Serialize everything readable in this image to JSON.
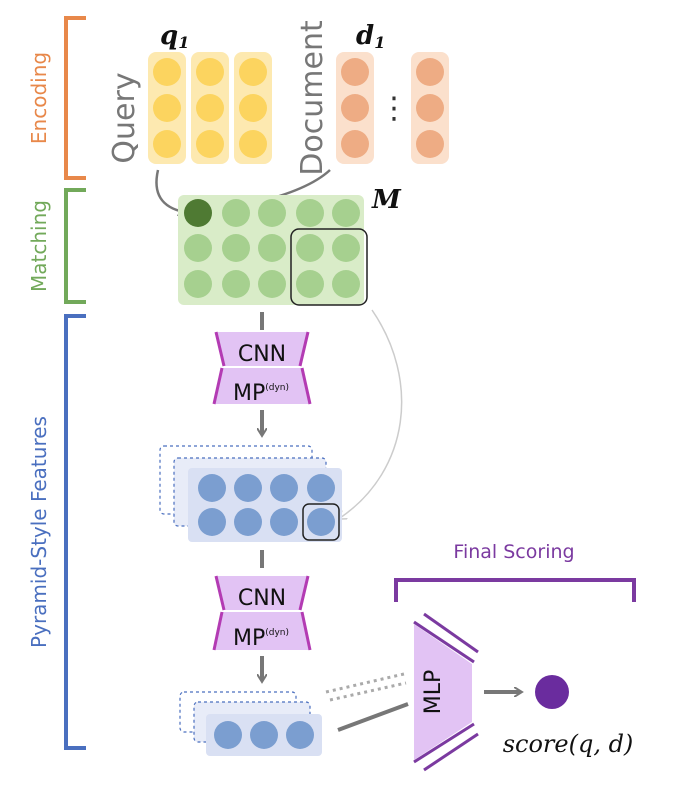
{
  "colors": {
    "encoding": "#e8884a",
    "matching": "#72a95a",
    "pyramid": "#4a6fbf",
    "scoring": "#7b3aa0",
    "query_fill": "#fde9b0",
    "query_dot": "#fcd45f",
    "doc_fill": "#fbe0cc",
    "doc_dot": "#eeac84",
    "match_bg": "#d9ecc8",
    "match_dot": "#a6d08f",
    "match_highlight": "#4f7a33",
    "feature_bg": "#d9e0f3",
    "feature_dot": "#7b9ed0",
    "cnn_fill": "#e2c3f4",
    "cnn_stroke": "#b33bb3",
    "score_dot": "#6a2c9e",
    "arrow": "#777777"
  },
  "stages": {
    "encoding": "Encoding",
    "matching": "Matching",
    "pyramid": "Pyramid-Style Features",
    "final_scoring": "Final Scoring"
  },
  "labels": {
    "query": "Query",
    "document": "Document",
    "q1_base": "q",
    "q1_sub": "1",
    "d1_base": "d",
    "d1_sub": "1",
    "matrix": "M",
    "ellipsis": "⋮"
  },
  "blocks": {
    "cnn_top": "CNN",
    "mp_top": "MP",
    "mp_top_sup": "(dyn)",
    "cnn_bottom": "CNN",
    "mp_bottom": "MP",
    "mp_bottom_sup": "(dyn)",
    "mlp": "MLP"
  },
  "output": {
    "score": "score(q, d)"
  }
}
